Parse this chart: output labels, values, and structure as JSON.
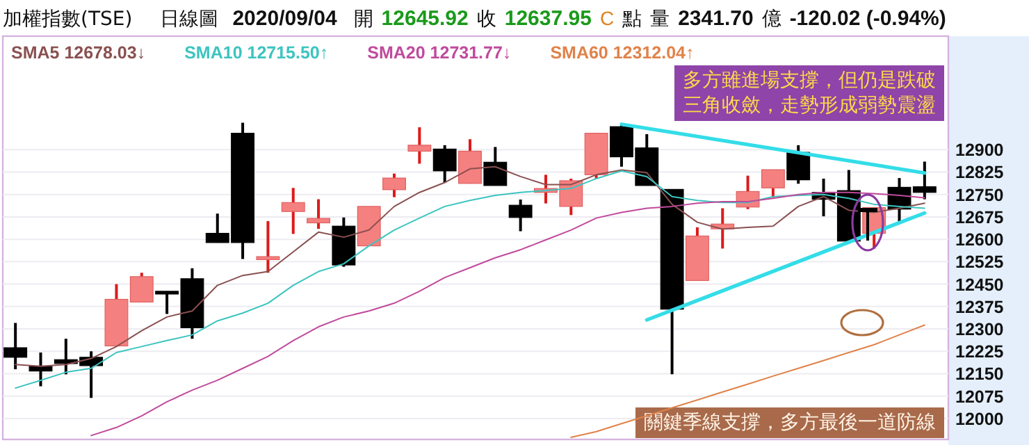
{
  "chart_data": {
    "type": "candlestick",
    "title": "加權指數(TSE)",
    "subtitle": "日線圖",
    "annotations": [
      "2020/09/04",
      "開",
      "12645.92",
      "收",
      "12637.95",
      "C",
      "點",
      "量",
      "2341.70",
      "億",
      "-120.02 (-0.94%)",
      "多方雖進場支撐，但仍是跌破",
      "三角收斂，走勢形成弱勢震盪",
      "關鍵季線支撐，多方最後一道防線"
    ],
    "categories": [
      null,
      null,
      null,
      null,
      null,
      null,
      null,
      null,
      null,
      null,
      null,
      null,
      null,
      null,
      null,
      null,
      null,
      null,
      null,
      null,
      null,
      null,
      null,
      null,
      null,
      null,
      null,
      null,
      null,
      null,
      null,
      null,
      null,
      null,
      null,
      null,
      null
    ],
    "ohlc": [
      [
        12237,
        12320,
        12165,
        12205
      ],
      [
        12175,
        12221,
        12108,
        12159
      ],
      [
        12197,
        12267,
        12148,
        12184
      ],
      [
        12205,
        12225,
        12069,
        12177
      ],
      [
        12243,
        12450,
        12243,
        12399
      ],
      [
        12390,
        12488,
        12390,
        12475
      ],
      [
        12426,
        12426,
        12350,
        12417
      ],
      [
        12468,
        12503,
        12267,
        12304
      ],
      [
        12620,
        12686,
        12589,
        12589
      ],
      [
        12955,
        12990,
        12534,
        12589
      ],
      [
        12532,
        12661,
        12488,
        12542
      ],
      [
        12693,
        12772,
        12618,
        12723
      ],
      [
        12655,
        12734,
        12635,
        12670
      ],
      [
        12644,
        12673,
        12508,
        12514
      ],
      [
        12578,
        12710,
        12578,
        12710
      ],
      [
        12766,
        12820,
        12741,
        12805
      ],
      [
        12895,
        12975,
        12853,
        12915
      ],
      [
        12902,
        12915,
        12790,
        12829
      ],
      [
        12787,
        12935,
        12787,
        12895
      ],
      [
        12858,
        12909,
        12780,
        12780
      ],
      [
        12714,
        12733,
        12627,
        12673
      ],
      [
        12757,
        12816,
        12720,
        12770
      ],
      [
        12710,
        12803,
        12681,
        12796
      ],
      [
        12816,
        12955,
        12803,
        12955
      ],
      [
        12977,
        12985,
        12843,
        12876
      ],
      [
        12906,
        12952,
        12780,
        12780
      ],
      [
        12767,
        12767,
        12148,
        12366
      ],
      [
        12462,
        12640,
        12462,
        12611
      ],
      [
        12635,
        12704,
        12569,
        12651
      ],
      [
        12708,
        12813,
        12701,
        12760
      ],
      [
        12772,
        12833,
        12739,
        12833
      ],
      [
        12891,
        12915,
        12786,
        12799
      ],
      [
        12757,
        12803,
        12677,
        12734
      ],
      [
        12763,
        12832,
        12594,
        12594
      ],
      [
        12620,
        12706,
        12569,
        12706
      ],
      [
        12774,
        12805,
        12655,
        12701
      ],
      [
        12776,
        12860,
        12734,
        12757
      ]
    ],
    "series": [
      {
        "name": "SMA5 12678.03↓",
        "type": "line",
        "color": "#8a5050",
        "values": [
          12181,
          12175,
          12181,
          12201,
          12241,
          12294,
          12340,
          12360,
          12446,
          12479,
          12492,
          12558,
          12624,
          12607,
          12631,
          12710,
          12757,
          12790,
          12836,
          12843,
          12810,
          12783,
          12783,
          12816,
          12832,
          12823,
          12717,
          12657,
          12634,
          12640,
          12644,
          12710,
          12743,
          12697,
          12690,
          12704,
          12721
        ]
      },
      {
        "name": "SMA10 12715.50↑",
        "type": "line",
        "color": "#3cc4c0",
        "values": [
          12102,
          12128,
          12155,
          12168,
          12221,
          12241,
          12261,
          12280,
          12327,
          12353,
          12386,
          12446,
          12492,
          12518,
          12578,
          12631,
          12671,
          12710,
          12730,
          12747,
          12757,
          12763,
          12770,
          12803,
          12829,
          12810,
          12743,
          12730,
          12723,
          12723,
          12743,
          12747,
          12750,
          12737,
          12717,
          12710,
          12704
        ]
      },
      {
        "name": "SMA20 12731.77↓",
        "type": "line",
        "color": "#c04a9c",
        "values": [
          null,
          null,
          null,
          11943,
          11970,
          12009,
          12056,
          12095,
          12128,
          12168,
          12208,
          12261,
          12307,
          12340,
          12360,
          12386,
          12426,
          12472,
          12505,
          12538,
          12565,
          12598,
          12631,
          12671,
          12690,
          12704,
          12710,
          12721,
          12726,
          12726,
          12737,
          12750,
          12757,
          12757,
          12753,
          12747,
          12739
        ]
      },
      {
        "name": "SMA60 12312.04↑",
        "type": "line",
        "color": "#e0824a",
        "values": [
          null,
          null,
          null,
          null,
          null,
          null,
          null,
          null,
          null,
          null,
          null,
          null,
          null,
          null,
          null,
          null,
          null,
          null,
          null,
          null,
          null,
          null,
          11937,
          11956,
          11983,
          12009,
          12036,
          12062,
          12089,
          12115,
          12142,
          12168,
          12194,
          12221,
          12247,
          12280,
          12313
        ]
      },
      {
        "type": "line",
        "color": "#33dde8",
        "values": [
          null,
          null,
          null,
          null,
          null,
          null,
          null,
          null,
          null,
          null,
          null,
          null,
          null,
          null,
          null,
          null,
          null,
          null,
          null,
          null,
          null,
          null,
          null,
          null,
          12985,
          null,
          null,
          null,
          null,
          null,
          null,
          null,
          null,
          null,
          null,
          null,
          12822
        ]
      },
      {
        "type": "line",
        "color": "#33dde8",
        "values": [
          null,
          null,
          null,
          null,
          null,
          null,
          null,
          null,
          null,
          null,
          null,
          null,
          null,
          null,
          null,
          null,
          null,
          null,
          null,
          null,
          null,
          null,
          null,
          null,
          null,
          12330,
          null,
          null,
          null,
          null,
          null,
          null,
          null,
          null,
          null,
          null,
          12688
        ]
      }
    ],
    "ylim": [
      11930,
      13280
    ],
    "yticks": [
      12000,
      12075,
      12150,
      12225,
      12300,
      12375,
      12450,
      12525,
      12600,
      12675,
      12750,
      12825,
      12900
    ],
    "grid": "y",
    "legend": "top left"
  }
}
